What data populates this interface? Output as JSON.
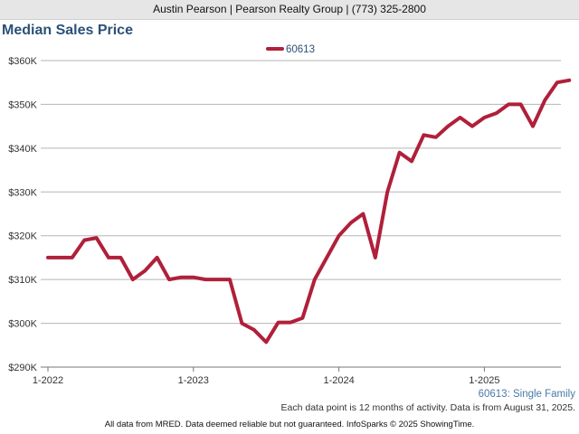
{
  "header": {
    "text": "Austin Pearson | Pearson Realty Group | (773) 325-2800"
  },
  "footer": {
    "note": "Each data point is 12 months of activity. Data is from August 31, 2025.",
    "disclaimer": "All data from MRED. Data deemed reliable but not guaranteed. InfoSparks © 2025 ShowingTime."
  },
  "chart_data": {
    "type": "line",
    "title": "Median Sales Price",
    "subtitle_label": "60613: Single Family",
    "legend_position": "top-center",
    "grid": true,
    "colors": {
      "series": "#b0203a",
      "title": "#2b5178",
      "sublabel": "#4a7aa6",
      "grid": "#b5b5b5"
    },
    "ylim": [
      290000,
      360000
    ],
    "yticks": [
      290000,
      300000,
      310000,
      320000,
      330000,
      340000,
      350000,
      360000
    ],
    "ytick_labels": [
      "$290K",
      "$300K",
      "$310K",
      "$320K",
      "$330K",
      "$340K",
      "$350K",
      "$360K"
    ],
    "xticks": [
      "2022-01",
      "2023-01",
      "2024-01",
      "2025-01"
    ],
    "xtick_labels": [
      "1-2022",
      "1-2023",
      "1-2024",
      "1-2025"
    ],
    "series": [
      {
        "name": "60613",
        "x": [
          "2022-01",
          "2022-02",
          "2022-03",
          "2022-04",
          "2022-05",
          "2022-06",
          "2022-07",
          "2022-08",
          "2022-09",
          "2022-10",
          "2022-11",
          "2022-12",
          "2023-01",
          "2023-02",
          "2023-03",
          "2023-04",
          "2023-05",
          "2023-06",
          "2023-07",
          "2023-08",
          "2023-09",
          "2023-10",
          "2023-11",
          "2023-12",
          "2024-01",
          "2024-02",
          "2024-03",
          "2024-04",
          "2024-05",
          "2024-06",
          "2024-07",
          "2024-08",
          "2024-09",
          "2024-10",
          "2024-11",
          "2024-12",
          "2025-01",
          "2025-02",
          "2025-03",
          "2025-04",
          "2025-05",
          "2025-06",
          "2025-07",
          "2025-08"
        ],
        "values": [
          315000,
          315000,
          315000,
          319000,
          319500,
          315000,
          315000,
          310000,
          312000,
          315000,
          310000,
          310500,
          310500,
          310000,
          310000,
          310000,
          300000,
          298500,
          295700,
          300200,
          300200,
          301200,
          310000,
          315000,
          320000,
          323000,
          325000,
          315000,
          330000,
          339000,
          337000,
          343000,
          342500,
          345000,
          347000,
          345000,
          347000,
          348000,
          350000,
          350000,
          345000,
          351000,
          355000,
          355500
        ]
      }
    ]
  }
}
